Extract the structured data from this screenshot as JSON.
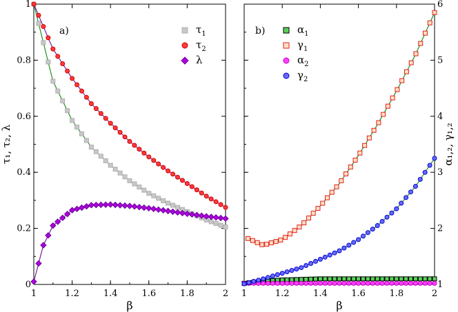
{
  "chart_data": [
    {
      "type": "scatter",
      "panel_label": "a)",
      "xlabel": "β",
      "ylabel": "τ₁, τ₂, λ",
      "xlim": [
        1,
        2
      ],
      "ylim": [
        0,
        1
      ],
      "xticks": [
        1,
        1.2,
        1.4,
        1.6,
        1.8,
        2
      ],
      "xtick_labels": [
        "1",
        "1.2",
        "1.4",
        "1.6",
        "1.8",
        "2"
      ],
      "yticks": [
        0,
        0.2,
        0.4,
        0.6,
        0.8,
        1
      ],
      "ytick_labels": [
        "0",
        "0.2",
        "0.4",
        "0.6",
        "0.8",
        "1"
      ],
      "legend_position": "top-right",
      "series": [
        {
          "name": "τ₁",
          "legend_base": "τ",
          "legend_sub": "1",
          "marker": "square",
          "fill": "#c8c8c8",
          "stroke": "#b0b0b0",
          "fit_color": "#1f8f1f",
          "x": [
            1,
            1.1,
            1.2,
            1.3,
            1.4,
            1.5,
            1.6,
            1.7,
            1.8,
            1.9,
            2
          ],
          "values": [
            1.0,
            0.725,
            0.585,
            0.49,
            0.425,
            0.37,
            0.325,
            0.29,
            0.26,
            0.23,
            0.205
          ]
        },
        {
          "name": "τ₂",
          "legend_base": "τ",
          "legend_sub": "2",
          "marker": "circle",
          "fill": "#ff3b3b",
          "stroke": "#cc0000",
          "fit_color": "#7a1fa2",
          "x": [
            1,
            1.1,
            1.2,
            1.3,
            1.4,
            1.5,
            1.6,
            1.7,
            1.8,
            1.9,
            2
          ],
          "values": [
            1.0,
            0.84,
            0.735,
            0.645,
            0.575,
            0.51,
            0.455,
            0.405,
            0.36,
            0.315,
            0.275
          ]
        },
        {
          "name": "λ",
          "legend_base": "λ",
          "legend_sub": "",
          "marker": "diamond",
          "fill": "#b000e0",
          "stroke": "#6a0099",
          "fit_color": "#7a1fa2",
          "x": [
            1,
            1.05,
            1.1,
            1.2,
            1.3,
            1.4,
            1.5,
            1.6,
            1.7,
            1.8,
            1.9,
            2
          ],
          "values": [
            0.01,
            0.14,
            0.21,
            0.265,
            0.283,
            0.285,
            0.28,
            0.272,
            0.262,
            0.252,
            0.243,
            0.235
          ]
        }
      ]
    },
    {
      "type": "scatter",
      "panel_label": "b)",
      "xlabel": "β",
      "ylabel": "α₁,₂, γ₁,₂",
      "xlim": [
        1,
        2
      ],
      "ylim": [
        1,
        6
      ],
      "xticks": [
        1,
        1.2,
        1.4,
        1.6,
        1.8,
        2
      ],
      "xtick_labels": [
        "1",
        "1.2",
        "1.4",
        "1.6",
        "1.8",
        "2"
      ],
      "yticks": [
        1,
        2,
        3,
        4,
        5,
        6
      ],
      "ytick_labels": [
        "1",
        "2",
        "3",
        "4",
        "5",
        "6"
      ],
      "legend_position": "top-left",
      "series": [
        {
          "name": "α₁",
          "legend_base": "α",
          "legend_sub": "1",
          "marker": "square",
          "fill": "#5ad05a",
          "stroke": "#000000",
          "fit_color": "#1f8f1f",
          "x": [
            1,
            1.1,
            1.2,
            1.3,
            1.4,
            1.5,
            1.6,
            1.7,
            1.8,
            1.9,
            2
          ],
          "values": [
            1.02,
            1.06,
            1.08,
            1.09,
            1.1,
            1.1,
            1.1,
            1.1,
            1.1,
            1.1,
            1.1
          ]
        },
        {
          "name": "γ₁",
          "legend_base": "γ",
          "legend_sub": "1",
          "marker": "square",
          "fill": "#ffe0c0",
          "stroke": "#e02020",
          "fit_color": "#1f8f1f",
          "x": [
            1.02,
            1.1,
            1.2,
            1.3,
            1.4,
            1.5,
            1.6,
            1.7,
            1.8,
            1.9,
            2
          ],
          "values": [
            1.82,
            1.7,
            1.8,
            2.05,
            2.4,
            2.8,
            3.3,
            3.85,
            4.45,
            5.1,
            5.85
          ]
        },
        {
          "name": "α₂",
          "legend_base": "α",
          "legend_sub": "2",
          "marker": "circle",
          "fill": "#ff40ff",
          "stroke": "#cc00cc",
          "fit_color": "#1f8f1f",
          "x": [
            1,
            1.1,
            1.2,
            1.3,
            1.4,
            1.5,
            1.6,
            1.7,
            1.8,
            1.9,
            2
          ],
          "values": [
            1.02,
            1.02,
            1.02,
            1.02,
            1.02,
            1.02,
            1.02,
            1.02,
            1.02,
            1.02,
            1.02
          ]
        },
        {
          "name": "γ₂",
          "legend_base": "γ",
          "legend_sub": "2",
          "marker": "circle",
          "fill": "#6a6aff",
          "stroke": "#0000cc",
          "fit_color": "#1f8f1f",
          "x": [
            1,
            1.1,
            1.2,
            1.3,
            1.4,
            1.5,
            1.6,
            1.7,
            1.8,
            1.9,
            2
          ],
          "values": [
            1.01,
            1.1,
            1.2,
            1.3,
            1.45,
            1.6,
            1.8,
            2.05,
            2.35,
            2.75,
            3.25
          ]
        }
      ]
    }
  ]
}
